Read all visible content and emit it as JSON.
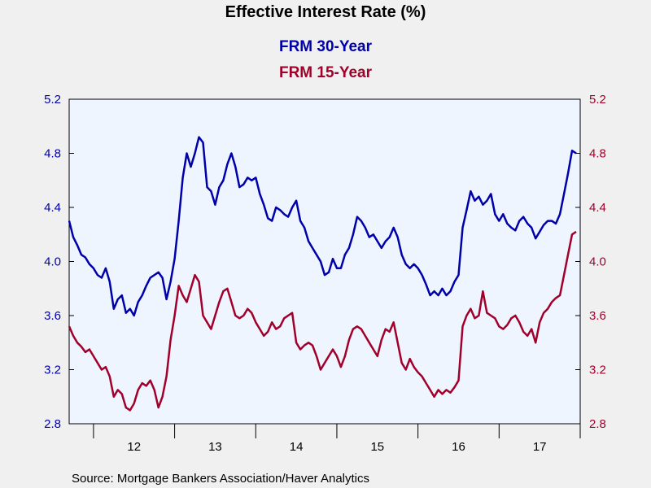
{
  "chart_data": {
    "type": "line",
    "title": "Effective Interest Rate (%)",
    "source": "Source:  Mortgage Bankers Association/Haver Analytics",
    "y_ticks": [
      "2.8",
      "3.2",
      "3.6",
      "4.0",
      "4.4",
      "4.8",
      "5.2"
    ],
    "ylim": [
      2.8,
      5.2
    ],
    "y_right_ticks": [
      "2.8",
      "3.2",
      "3.6",
      "4.0",
      "4.4",
      "4.8",
      "5.2"
    ],
    "x_year_labels": [
      "12",
      "13",
      "14",
      "15",
      "16",
      "17"
    ],
    "xlim": [
      2011.7,
      2018.0
    ],
    "grid": false,
    "legend": "top",
    "colors": {
      "frm30": "#0000aa",
      "frm15": "#a0002a",
      "axis_left": "#0000aa",
      "axis_right": "#a0002a",
      "plot_bg": "#eef5ff"
    },
    "series": [
      {
        "name": "FRM 30-Year",
        "x": [
          2011.7,
          2011.75,
          2011.8,
          2011.85,
          2011.9,
          2011.95,
          2012.0,
          2012.05,
          2012.1,
          2012.15,
          2012.2,
          2012.25,
          2012.3,
          2012.35,
          2012.4,
          2012.45,
          2012.5,
          2012.55,
          2012.6,
          2012.65,
          2012.7,
          2012.75,
          2012.8,
          2012.85,
          2012.9,
          2012.95,
          2013.0,
          2013.05,
          2013.1,
          2013.15,
          2013.2,
          2013.25,
          2013.3,
          2013.35,
          2013.4,
          2013.45,
          2013.5,
          2013.55,
          2013.6,
          2013.65,
          2013.7,
          2013.75,
          2013.8,
          2013.85,
          2013.9,
          2013.95,
          2014.0,
          2014.05,
          2014.1,
          2014.15,
          2014.2,
          2014.25,
          2014.3,
          2014.35,
          2014.4,
          2014.45,
          2014.5,
          2014.55,
          2014.6,
          2014.65,
          2014.7,
          2014.75,
          2014.8,
          2014.85,
          2014.9,
          2014.95,
          2015.0,
          2015.05,
          2015.1,
          2015.15,
          2015.2,
          2015.25,
          2015.3,
          2015.35,
          2015.4,
          2015.45,
          2015.5,
          2015.55,
          2015.6,
          2015.65,
          2015.7,
          2015.75,
          2015.8,
          2015.85,
          2015.9,
          2015.95,
          2016.0,
          2016.05,
          2016.1,
          2016.15,
          2016.2,
          2016.25,
          2016.3,
          2016.35,
          2016.4,
          2016.45,
          2016.5,
          2016.55,
          2016.6,
          2016.65,
          2016.7,
          2016.75,
          2016.8,
          2016.85,
          2016.9,
          2016.95,
          2017.0,
          2017.05,
          2017.1,
          2017.15,
          2017.2,
          2017.25,
          2017.3,
          2017.35,
          2017.4,
          2017.45,
          2017.5,
          2017.55,
          2017.6,
          2017.65,
          2017.7,
          2017.75,
          2017.8,
          2017.85,
          2017.9,
          2017.95
        ],
        "values": [
          4.3,
          4.18,
          4.12,
          4.05,
          4.03,
          3.98,
          3.95,
          3.9,
          3.88,
          3.95,
          3.85,
          3.65,
          3.72,
          3.75,
          3.62,
          3.65,
          3.6,
          3.7,
          3.75,
          3.82,
          3.88,
          3.9,
          3.92,
          3.88,
          3.72,
          3.85,
          4.02,
          4.3,
          4.62,
          4.8,
          4.7,
          4.8,
          4.92,
          4.88,
          4.55,
          4.52,
          4.42,
          4.55,
          4.6,
          4.72,
          4.8,
          4.7,
          4.55,
          4.57,
          4.62,
          4.6,
          4.62,
          4.5,
          4.42,
          4.32,
          4.3,
          4.4,
          4.38,
          4.35,
          4.33,
          4.4,
          4.45,
          4.3,
          4.25,
          4.15,
          4.1,
          4.05,
          4.0,
          3.9,
          3.92,
          4.02,
          3.95,
          3.95,
          4.05,
          4.1,
          4.2,
          4.33,
          4.3,
          4.25,
          4.18,
          4.2,
          4.15,
          4.1,
          4.15,
          4.18,
          4.25,
          4.18,
          4.05,
          3.98,
          3.95,
          3.98,
          3.95,
          3.9,
          3.83,
          3.75,
          3.78,
          3.75,
          3.8,
          3.75,
          3.78,
          3.85,
          3.9,
          4.25,
          4.38,
          4.52,
          4.45,
          4.48,
          4.42,
          4.45,
          4.5,
          4.35,
          4.3,
          4.35,
          4.28,
          4.25,
          4.23,
          4.3,
          4.33,
          4.28,
          4.25,
          4.17,
          4.22,
          4.27,
          4.3,
          4.3,
          4.28,
          4.35,
          4.5,
          4.65,
          4.82,
          4.8
        ]
      },
      {
        "name": "FRM 15-Year",
        "x": [
          2011.7,
          2011.75,
          2011.8,
          2011.85,
          2011.9,
          2011.95,
          2012.0,
          2012.05,
          2012.1,
          2012.15,
          2012.2,
          2012.25,
          2012.3,
          2012.35,
          2012.4,
          2012.45,
          2012.5,
          2012.55,
          2012.6,
          2012.65,
          2012.7,
          2012.75,
          2012.8,
          2012.85,
          2012.9,
          2012.95,
          2013.0,
          2013.05,
          2013.1,
          2013.15,
          2013.2,
          2013.25,
          2013.3,
          2013.35,
          2013.4,
          2013.45,
          2013.5,
          2013.55,
          2013.6,
          2013.65,
          2013.7,
          2013.75,
          2013.8,
          2013.85,
          2013.9,
          2013.95,
          2014.0,
          2014.05,
          2014.1,
          2014.15,
          2014.2,
          2014.25,
          2014.3,
          2014.35,
          2014.4,
          2014.45,
          2014.5,
          2014.55,
          2014.6,
          2014.65,
          2014.7,
          2014.75,
          2014.8,
          2014.85,
          2014.9,
          2014.95,
          2015.0,
          2015.05,
          2015.1,
          2015.15,
          2015.2,
          2015.25,
          2015.3,
          2015.35,
          2015.4,
          2015.45,
          2015.5,
          2015.55,
          2015.6,
          2015.65,
          2015.7,
          2015.75,
          2015.8,
          2015.85,
          2015.9,
          2015.95,
          2016.0,
          2016.05,
          2016.1,
          2016.15,
          2016.2,
          2016.25,
          2016.3,
          2016.35,
          2016.4,
          2016.45,
          2016.5,
          2016.55,
          2016.6,
          2016.65,
          2016.7,
          2016.75,
          2016.8,
          2016.85,
          2016.9,
          2016.95,
          2017.0,
          2017.05,
          2017.1,
          2017.15,
          2017.2,
          2017.25,
          2017.3,
          2017.35,
          2017.4,
          2017.45,
          2017.5,
          2017.55,
          2017.6,
          2017.65,
          2017.7,
          2017.75,
          2017.8,
          2017.85,
          2017.9,
          2017.95
        ],
        "values": [
          3.52,
          3.45,
          3.4,
          3.37,
          3.33,
          3.35,
          3.3,
          3.25,
          3.2,
          3.22,
          3.15,
          3.0,
          3.05,
          3.02,
          2.92,
          2.9,
          2.95,
          3.05,
          3.1,
          3.08,
          3.12,
          3.05,
          2.92,
          3.0,
          3.15,
          3.42,
          3.6,
          3.82,
          3.75,
          3.7,
          3.8,
          3.9,
          3.85,
          3.6,
          3.55,
          3.5,
          3.6,
          3.7,
          3.78,
          3.8,
          3.7,
          3.6,
          3.58,
          3.6,
          3.65,
          3.62,
          3.55,
          3.5,
          3.45,
          3.48,
          3.55,
          3.5,
          3.52,
          3.58,
          3.6,
          3.62,
          3.4,
          3.35,
          3.38,
          3.4,
          3.38,
          3.3,
          3.2,
          3.25,
          3.3,
          3.35,
          3.3,
          3.22,
          3.3,
          3.42,
          3.5,
          3.52,
          3.5,
          3.45,
          3.4,
          3.35,
          3.3,
          3.42,
          3.5,
          3.48,
          3.55,
          3.4,
          3.25,
          3.2,
          3.28,
          3.22,
          3.18,
          3.15,
          3.1,
          3.05,
          3.0,
          3.05,
          3.02,
          3.05,
          3.03,
          3.07,
          3.12,
          3.52,
          3.6,
          3.65,
          3.58,
          3.6,
          3.78,
          3.62,
          3.6,
          3.58,
          3.52,
          3.5,
          3.53,
          3.58,
          3.6,
          3.55,
          3.48,
          3.45,
          3.5,
          3.4,
          3.55,
          3.62,
          3.65,
          3.7,
          3.73,
          3.75,
          3.9,
          4.05,
          4.2,
          4.22
        ]
      }
    ]
  }
}
